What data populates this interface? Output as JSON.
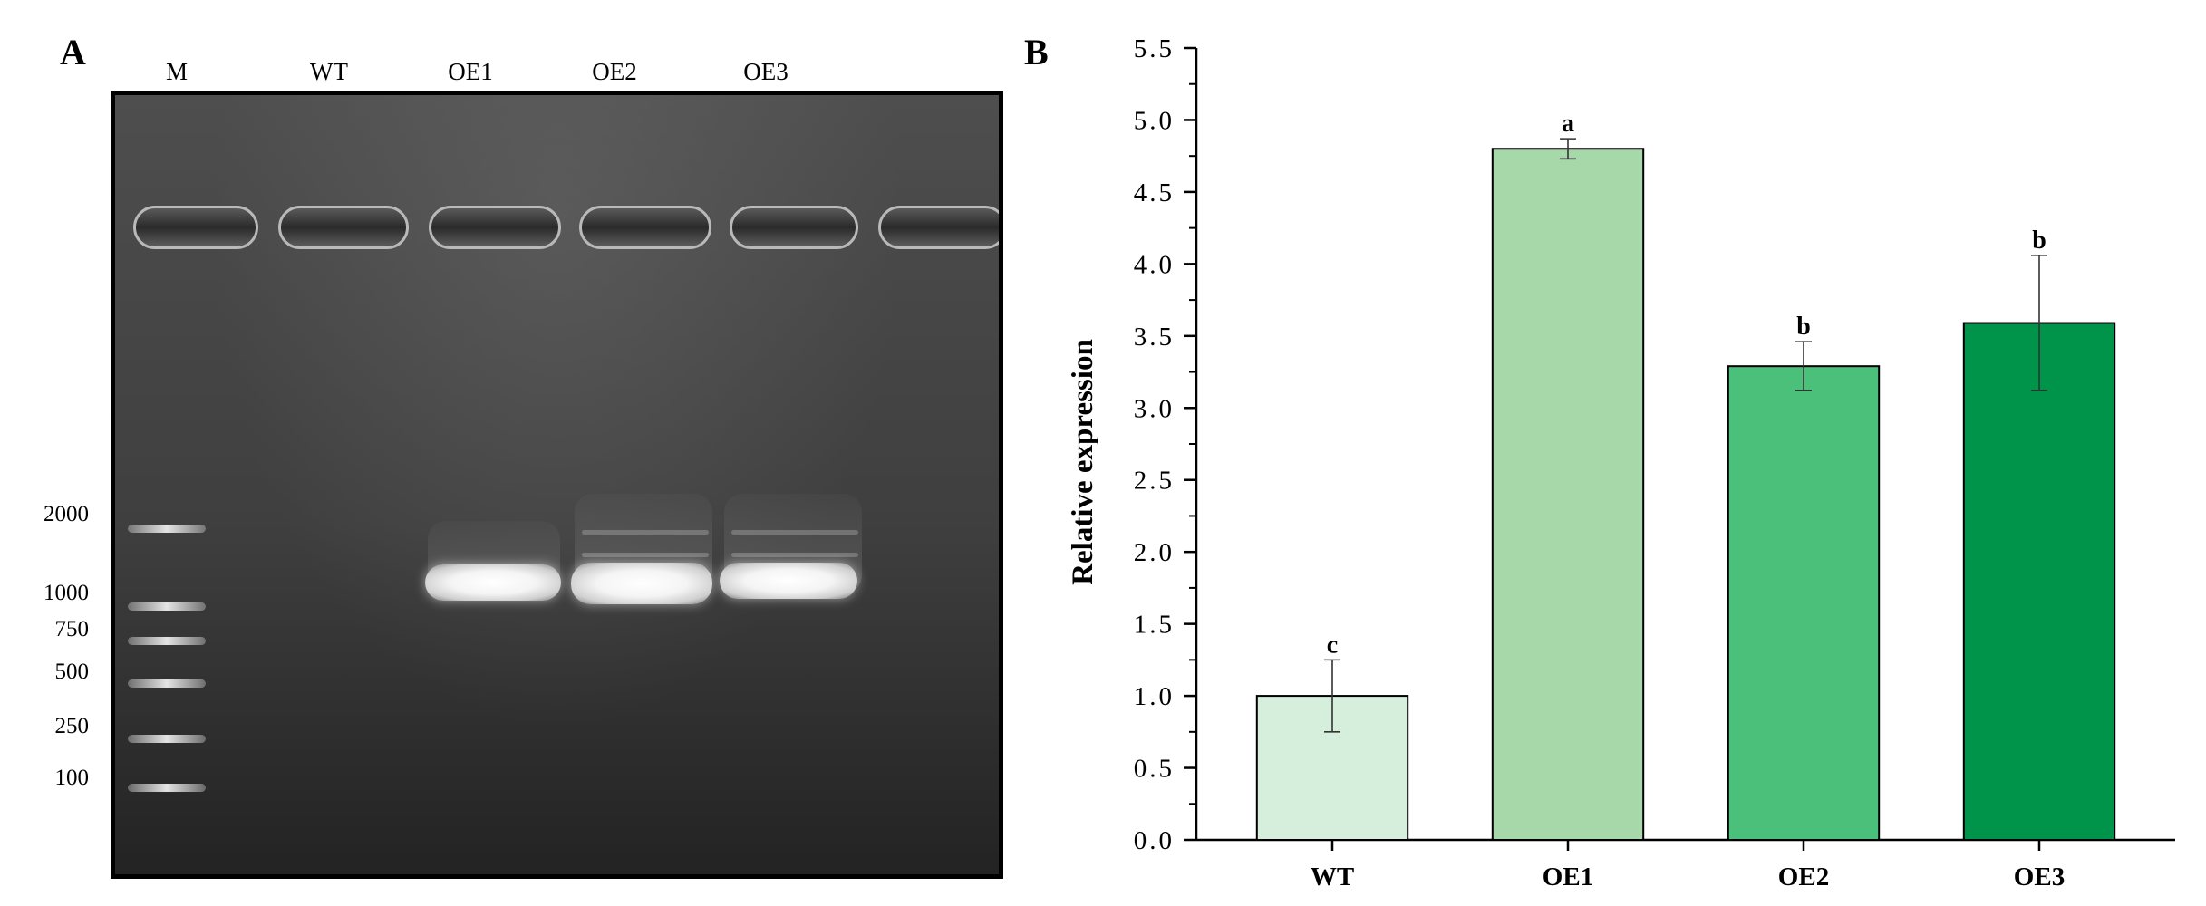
{
  "panel_a": {
    "label": "A",
    "lanes": [
      "M",
      "WT",
      "OE1",
      "OE2",
      "OE3"
    ],
    "marker_sizes": [
      "2000",
      "1000",
      "750",
      "500",
      "250",
      "100"
    ]
  },
  "panel_b": {
    "label": "B"
  },
  "chart_data": {
    "type": "bar",
    "categories": [
      "WT",
      "OE1",
      "OE2",
      "OE3"
    ],
    "values": [
      1.0,
      4.8,
      3.29,
      3.59
    ],
    "errors": [
      0.25,
      0.07,
      0.17,
      0.47
    ],
    "significance": [
      "c",
      "a",
      "b",
      "b"
    ],
    "colors": [
      "#d6eedc",
      "#a7d8aa",
      "#4bc07b",
      "#00934a"
    ],
    "xlabel": "",
    "ylabel": "Relative expression",
    "ylim": [
      0,
      5.5
    ],
    "yticks": [
      "0.0",
      "0.5",
      "1.0",
      "1.5",
      "2.0",
      "2.5",
      "3.0",
      "3.5",
      "4.0",
      "4.5",
      "5.0",
      "5.5"
    ],
    "grid": false,
    "legend": "none"
  }
}
